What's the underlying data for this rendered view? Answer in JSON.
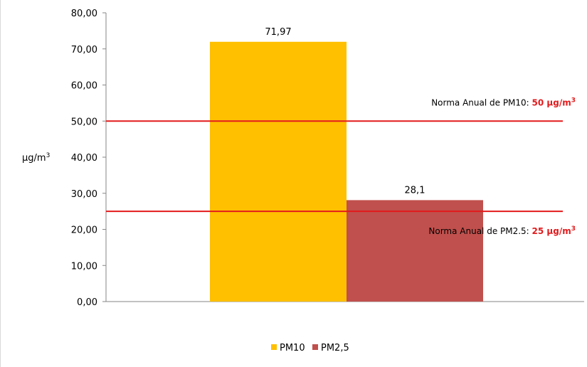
{
  "chart_data": {
    "type": "bar",
    "ylabel_main": "µg/m",
    "ylabel_sup": "3",
    "ylim": [
      0,
      80
    ],
    "yticks": [
      "0,00",
      "10,00",
      "20,00",
      "30,00",
      "40,00",
      "50,00",
      "60,00",
      "70,00",
      "80,00"
    ],
    "grid": false,
    "series": [
      {
        "name": "PM10",
        "value": 71.97,
        "label": "71,97",
        "color": "#FFC000"
      },
      {
        "name": "PM2,5",
        "value": 28.1,
        "label": "28,1",
        "color": "#C0504D"
      }
    ],
    "reference_lines": [
      {
        "value": 50,
        "text": "Norma Anual de PM10: ",
        "highlight": "50 µg/m",
        "sup": "3",
        "color": "#E31A1C"
      },
      {
        "value": 25,
        "text": "Norma Anual de PM2.5: ",
        "highlight": "25 µg/m",
        "sup": "3",
        "color": "#E31A1C"
      }
    ],
    "legend_position": "bottom"
  }
}
